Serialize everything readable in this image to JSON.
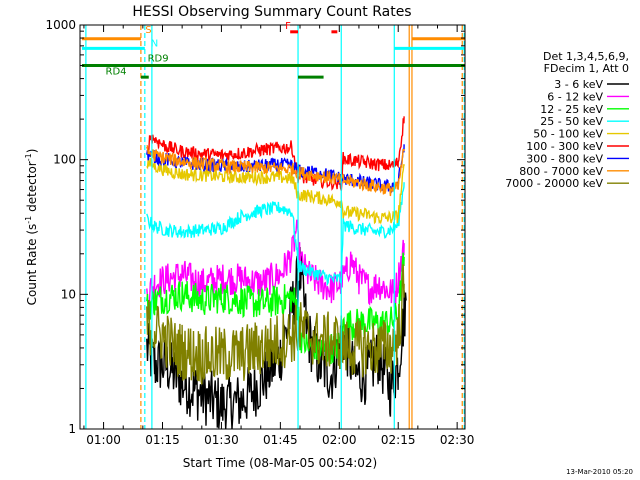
{
  "chart_data": {
    "type": "line",
    "title": "HESSI Observing Summary Count Rates",
    "xlabel": "Start Time (08-Mar-05 00:54:02)",
    "ylabel": "Count Rate (s",
    "ylabel_sup": "-1",
    "ylabel_tail": " detector",
    "ylabel_close": ")",
    "yscale": "log",
    "ylim": [
      1,
      1000
    ],
    "xlim": [
      "00:54",
      "02:32"
    ],
    "x_ticks": [
      {
        "t": 60,
        "label": "01:00"
      },
      {
        "t": 75,
        "label": "01:15"
      },
      {
        "t": 90,
        "label": "01:30"
      },
      {
        "t": 105,
        "label": "01:45"
      },
      {
        "t": 120,
        "label": "02:00"
      },
      {
        "t": 135,
        "label": "02:15"
      },
      {
        "t": 150,
        "label": "02:30"
      }
    ],
    "y_ticks": [
      {
        "v": 1,
        "label": "1"
      },
      {
        "v": 10,
        "label": "10"
      },
      {
        "v": 100,
        "label": "100"
      },
      {
        "v": 1000,
        "label": "1000"
      }
    ],
    "legend_position": "right",
    "legend_header": [
      "Det 1,3,4,5,6,9,",
      "FDecim 1, Att 0"
    ],
    "series": [
      {
        "name": "3 - 6 keV",
        "color": "#000000",
        "points": [
          [
            71,
            4
          ],
          [
            73,
            3
          ],
          [
            76,
            3
          ],
          [
            80,
            2.2
          ],
          [
            85,
            1.8
          ],
          [
            90,
            1.5
          ],
          [
            95,
            1.6
          ],
          [
            100,
            2.2
          ],
          [
            105,
            3.5
          ],
          [
            108,
            8
          ],
          [
            110,
            15
          ],
          [
            112,
            5
          ],
          [
            115,
            3
          ],
          [
            118,
            2.5
          ],
          [
            121,
            5
          ],
          [
            124,
            2.5
          ],
          [
            127,
            2.5
          ],
          [
            130,
            3.5
          ],
          [
            133,
            2
          ],
          [
            135,
            3
          ],
          [
            136.5,
            7
          ],
          [
            137,
            9
          ]
        ]
      },
      {
        "name": "6 - 12 keV",
        "color": "#ff00ff",
        "points": [
          [
            71,
            10
          ],
          [
            73,
            12
          ],
          [
            76,
            13
          ],
          [
            80,
            14
          ],
          [
            85,
            12
          ],
          [
            90,
            13
          ],
          [
            95,
            13
          ],
          [
            100,
            12
          ],
          [
            105,
            14
          ],
          [
            108,
            20
          ],
          [
            109,
            30
          ],
          [
            110,
            18
          ],
          [
            112,
            14
          ],
          [
            115,
            12
          ],
          [
            118,
            11
          ],
          [
            120,
            12
          ],
          [
            122,
            15
          ],
          [
            123,
            18
          ],
          [
            125,
            13
          ],
          [
            128,
            11
          ],
          [
            130,
            12
          ],
          [
            132,
            11
          ],
          [
            134,
            10
          ],
          [
            135,
            13
          ],
          [
            136.5,
            24
          ]
        ]
      },
      {
        "name": "12 - 25 keV",
        "color": "#00ff00",
        "points": [
          [
            71,
            8
          ],
          [
            73,
            9
          ],
          [
            76,
            9.5
          ],
          [
            80,
            10
          ],
          [
            85,
            9
          ],
          [
            90,
            9.5
          ],
          [
            95,
            9
          ],
          [
            100,
            8.5
          ],
          [
            105,
            9
          ],
          [
            108,
            9.5
          ],
          [
            109.5,
            8
          ],
          [
            110,
            5
          ],
          [
            112,
            4
          ],
          [
            115,
            3.8
          ],
          [
            118,
            4
          ],
          [
            120.5,
            4.2
          ],
          [
            121,
            6
          ],
          [
            124,
            6
          ],
          [
            127,
            6.2
          ],
          [
            130,
            6
          ],
          [
            133,
            6.2
          ],
          [
            135,
            7
          ],
          [
            136.5,
            19
          ]
        ]
      },
      {
        "name": "25 - 50 keV",
        "color": "#00ffff",
        "points": [
          [
            71,
            36
          ],
          [
            73,
            32
          ],
          [
            76,
            30
          ],
          [
            80,
            29
          ],
          [
            85,
            30
          ],
          [
            90,
            31
          ],
          [
            95,
            38
          ],
          [
            100,
            42
          ],
          [
            105,
            44
          ],
          [
            108,
            41
          ],
          [
            109.5,
            17
          ],
          [
            110,
            16
          ],
          [
            112,
            15
          ],
          [
            115,
            14
          ],
          [
            118,
            13
          ],
          [
            120.5,
            13
          ],
          [
            121,
            33
          ],
          [
            124,
            31
          ],
          [
            127,
            30
          ],
          [
            130,
            29
          ],
          [
            133,
            30
          ],
          [
            135,
            33
          ],
          [
            136.5,
            68
          ]
        ]
      },
      {
        "name": "50 - 100 keV",
        "color": "#e6c800",
        "points": [
          [
            71,
            95
          ],
          [
            73,
            90
          ],
          [
            76,
            83
          ],
          [
            80,
            78
          ],
          [
            85,
            77
          ],
          [
            90,
            75
          ],
          [
            95,
            74
          ],
          [
            100,
            74
          ],
          [
            105,
            74
          ],
          [
            108,
            72
          ],
          [
            109.5,
            55
          ],
          [
            112,
            54
          ],
          [
            115,
            52
          ],
          [
            118,
            50
          ],
          [
            120.5,
            49
          ],
          [
            121,
            41
          ],
          [
            124,
            40
          ],
          [
            127,
            39
          ],
          [
            130,
            37
          ],
          [
            133,
            37
          ],
          [
            135,
            38
          ],
          [
            136.5,
            90
          ]
        ]
      },
      {
        "name": "100 - 300 keV",
        "color": "#ff0000",
        "points": [
          [
            71,
            115
          ],
          [
            72,
            150
          ],
          [
            74,
            135
          ],
          [
            76,
            125
          ],
          [
            80,
            115
          ],
          [
            85,
            110
          ],
          [
            90,
            108
          ],
          [
            95,
            112
          ],
          [
            100,
            118
          ],
          [
            105,
            122
          ],
          [
            108,
            124
          ],
          [
            109.5,
            75
          ],
          [
            112,
            72
          ],
          [
            115,
            70
          ],
          [
            118,
            68
          ],
          [
            120.5,
            66
          ],
          [
            121,
            102
          ],
          [
            124,
            98
          ],
          [
            127,
            95
          ],
          [
            130,
            92
          ],
          [
            133,
            90
          ],
          [
            135,
            95
          ],
          [
            136.5,
            210
          ]
        ]
      },
      {
        "name": "300 - 800 keV",
        "color": "#0000ff",
        "points": [
          [
            71,
            110
          ],
          [
            73,
            105
          ],
          [
            76,
            100
          ],
          [
            80,
            95
          ],
          [
            85,
            92
          ],
          [
            90,
            90
          ],
          [
            95,
            88
          ],
          [
            100,
            90
          ],
          [
            105,
            92
          ],
          [
            108,
            90
          ],
          [
            110,
            82
          ],
          [
            115,
            80
          ],
          [
            118,
            76
          ],
          [
            121,
            72
          ],
          [
            124,
            70
          ],
          [
            127,
            67
          ],
          [
            130,
            65
          ],
          [
            133,
            63
          ],
          [
            135,
            66
          ],
          [
            136.5,
            130
          ]
        ]
      },
      {
        "name": "800 - 7000 keV",
        "color": "#ff8c00",
        "points": [
          [
            71,
            115
          ],
          [
            73,
            108
          ],
          [
            76,
            102
          ],
          [
            80,
            97
          ],
          [
            85,
            93
          ],
          [
            90,
            90
          ],
          [
            95,
            88
          ],
          [
            100,
            87
          ],
          [
            105,
            86
          ],
          [
            108,
            85
          ],
          [
            110,
            80
          ],
          [
            115,
            76
          ],
          [
            118,
            73
          ],
          [
            121,
            70
          ],
          [
            124,
            68
          ],
          [
            127,
            65
          ],
          [
            130,
            63
          ],
          [
            133,
            60
          ],
          [
            135,
            62
          ],
          [
            136.5,
            120
          ]
        ]
      },
      {
        "name": "7000 - 20000 keV",
        "color": "#808000",
        "points": [
          [
            71,
            6
          ],
          [
            73,
            5.5
          ],
          [
            75,
            5
          ],
          [
            78,
            4
          ],
          [
            80,
            3.8
          ],
          [
            85,
            3.5
          ],
          [
            90,
            3.5
          ],
          [
            95,
            3.6
          ],
          [
            100,
            4
          ],
          [
            105,
            4.5
          ],
          [
            108,
            5
          ],
          [
            110,
            5.5
          ],
          [
            115,
            4.5
          ],
          [
            118,
            4.5
          ],
          [
            120.5,
            4.5
          ],
          [
            121,
            4
          ],
          [
            124,
            4
          ],
          [
            127,
            4
          ],
          [
            130,
            4
          ],
          [
            133,
            4
          ],
          [
            135,
            5
          ],
          [
            136.5,
            12
          ]
        ]
      }
    ],
    "flags": {
      "S": "S",
      "N": "N",
      "F": "F",
      "RD9": "RD9",
      "RD4": "RD4"
    },
    "flag_bars": [
      {
        "key": "S",
        "color": "#ff8c00",
        "level": 790,
        "segments": [
          [
            54.5,
            69.5
          ],
          [
            138.5,
            152
          ]
        ]
      },
      {
        "key": "N",
        "color": "#00ffff",
        "level": 670,
        "segments": [
          [
            54.5,
            70.5
          ],
          [
            134,
            152
          ]
        ]
      },
      {
        "key": "F",
        "color": "#ff0000",
        "level": 890,
        "segments": [
          [
            107.5,
            109.5
          ],
          [
            118,
            119.5
          ]
        ]
      },
      {
        "key": "RD9",
        "color": "#008000",
        "level": 500,
        "segments": [
          [
            54.5,
            152
          ]
        ]
      },
      {
        "key": "RD4",
        "color": "#008000",
        "level": 410,
        "segments": [
          [
            69.5,
            71.5
          ],
          [
            109.5,
            116
          ]
        ]
      }
    ],
    "vlines": [
      {
        "t": 55.5,
        "color": "#00ffff",
        "dash": false
      },
      {
        "t": 69.5,
        "color": "#ff8c00",
        "dash": true
      },
      {
        "t": 70.5,
        "color": "#00ffff",
        "dash": true
      },
      {
        "t": 72.3,
        "color": "#00ffff",
        "dash": false
      },
      {
        "t": 109.5,
        "color": "#00ffff",
        "dash": false
      },
      {
        "t": 120.5,
        "color": "#00ffff",
        "dash": false
      },
      {
        "t": 134,
        "color": "#00ffff",
        "dash": false
      },
      {
        "t": 137.8,
        "color": "#ff8c00",
        "dash": false
      },
      {
        "t": 138.5,
        "color": "#ff8c00",
        "dash": false
      },
      {
        "t": 151.3,
        "color": "#ff8c00",
        "dash": true
      },
      {
        "t": 151.8,
        "color": "#00ffff",
        "dash": true
      }
    ],
    "timestamp": "13-Mar-2010 05:20"
  }
}
